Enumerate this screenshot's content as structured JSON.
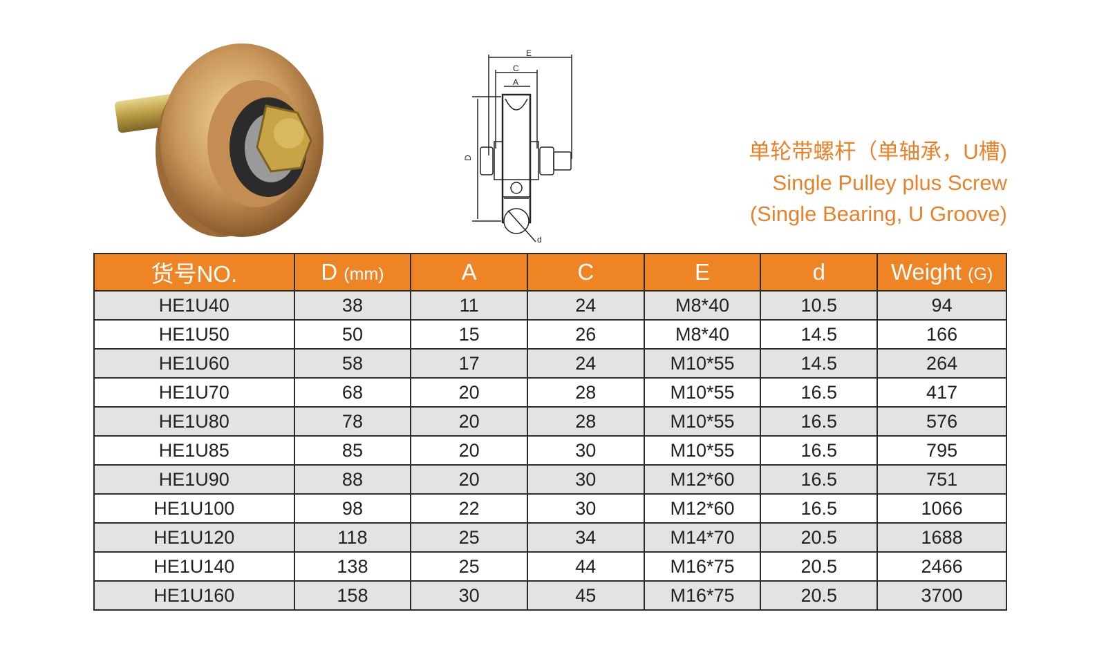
{
  "title": {
    "chinese": "单轮带螺杆（单轴承，U槽)",
    "line1": "Single Pulley plus Screw",
    "line2": "(Single Bearing, U Groove)"
  },
  "diagram_labels": {
    "E": "E",
    "C": "C",
    "A": "A",
    "D": "D",
    "d": "d"
  },
  "colors": {
    "header": "#ef8424",
    "title": "#e8822a",
    "stripe": "#e3e3e3"
  },
  "table": {
    "headers": [
      {
        "label": "货号NO.",
        "unit": ""
      },
      {
        "label": "D",
        "unit": "(mm)"
      },
      {
        "label": "A",
        "unit": ""
      },
      {
        "label": "C",
        "unit": ""
      },
      {
        "label": "E",
        "unit": ""
      },
      {
        "label": "d",
        "unit": ""
      },
      {
        "label": "Weight",
        "unit": "(G)"
      }
    ],
    "rows": [
      [
        "HE1U40",
        "38",
        "11",
        "24",
        "M8*40",
        "10.5",
        "94"
      ],
      [
        "HE1U50",
        "50",
        "15",
        "26",
        "M8*40",
        "14.5",
        "166"
      ],
      [
        "HE1U60",
        "58",
        "17",
        "24",
        "M10*55",
        "14.5",
        "264"
      ],
      [
        "HE1U70",
        "68",
        "20",
        "28",
        "M10*55",
        "16.5",
        "417"
      ],
      [
        "HE1U80",
        "78",
        "20",
        "28",
        "M10*55",
        "16.5",
        "576"
      ],
      [
        "HE1U85",
        "85",
        "20",
        "30",
        "M10*55",
        "16.5",
        "795"
      ],
      [
        "HE1U90",
        "88",
        "20",
        "30",
        "M12*60",
        "16.5",
        "751"
      ],
      [
        "HE1U100",
        "98",
        "22",
        "30",
        "M12*60",
        "16.5",
        "1066"
      ],
      [
        "HE1U120",
        "118",
        "25",
        "34",
        "M14*70",
        "20.5",
        "1688"
      ],
      [
        "HE1U140",
        "138",
        "25",
        "44",
        "M16*75",
        "20.5",
        "2466"
      ],
      [
        "HE1U160",
        "158",
        "30",
        "45",
        "M16*75",
        "20.5",
        "3700"
      ]
    ]
  }
}
